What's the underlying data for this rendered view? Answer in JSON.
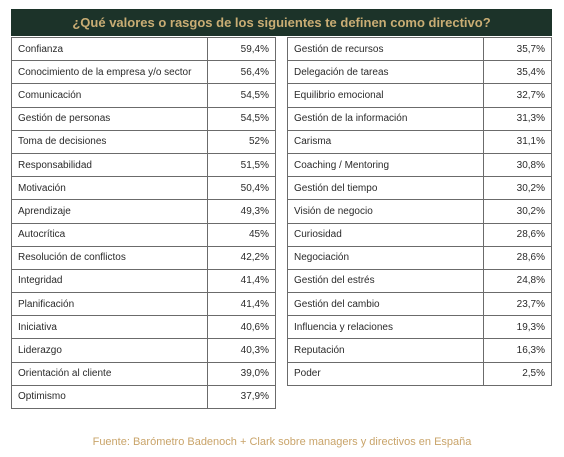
{
  "title": "¿Qué valores o rasgos de los siguientes te definen como directivo?",
  "left_rows": [
    {
      "label": "Confianza",
      "value": "59,4%"
    },
    {
      "label": "Conocimiento de la empresa y/o sector",
      "value": "56,4%"
    },
    {
      "label": "Comunicación",
      "value": "54,5%"
    },
    {
      "label": "Gestión de personas",
      "value": "54,5%"
    },
    {
      "label": "Toma de decisiones",
      "value": "52%"
    },
    {
      "label": "Responsabilidad",
      "value": "51,5%"
    },
    {
      "label": "Motivación",
      "value": "50,4%"
    },
    {
      "label": "Aprendizaje",
      "value": "49,3%"
    },
    {
      "label": "Autocrítica",
      "value": "45%"
    },
    {
      "label": "Resolución de conflictos",
      "value": "42,2%"
    },
    {
      "label": "Integridad",
      "value": "41,4%"
    },
    {
      "label": "Planificación",
      "value": "41,4%"
    },
    {
      "label": "Iniciativa",
      "value": "40,6%"
    },
    {
      "label": "Liderazgo",
      "value": "40,3%"
    },
    {
      "label": "Orientación al cliente",
      "value": "39,0%"
    },
    {
      "label": "Optimismo",
      "value": "37,9%"
    }
  ],
  "right_rows": [
    {
      "label": "Gestión de recursos",
      "value": "35,7%"
    },
    {
      "label": "Delegación de tareas",
      "value": "35,4%"
    },
    {
      "label": "Equilibrio emocional",
      "value": "32,7%"
    },
    {
      "label": "Gestión de la información",
      "value": "31,3%"
    },
    {
      "label": "Carisma",
      "value": "31,1%"
    },
    {
      "label": "Coaching / Mentoring",
      "value": "30,8%"
    },
    {
      "label": "Gestión del tiempo",
      "value": "30,2%"
    },
    {
      "label": "Visión de negocio",
      "value": "30,2%"
    },
    {
      "label": "Curiosidad",
      "value": "28,6%"
    },
    {
      "label": "Negociación",
      "value": "28,6%"
    },
    {
      "label": "Gestión del estrés",
      "value": "24,8%"
    },
    {
      "label": "Gestión del cambio",
      "value": "23,7%"
    },
    {
      "label": "Influencia y relaciones",
      "value": "19,3%"
    },
    {
      "label": "Reputación",
      "value": "16,3%"
    },
    {
      "label": "Poder",
      "value": "2,5%"
    }
  ],
  "source": "Fuente: Barómetro Badenoch + Clark sobre managers y directivos en España",
  "colors": {
    "header_bg": "#1c3329",
    "accent": "#c9ad74",
    "source_text": "#c9a46a"
  }
}
